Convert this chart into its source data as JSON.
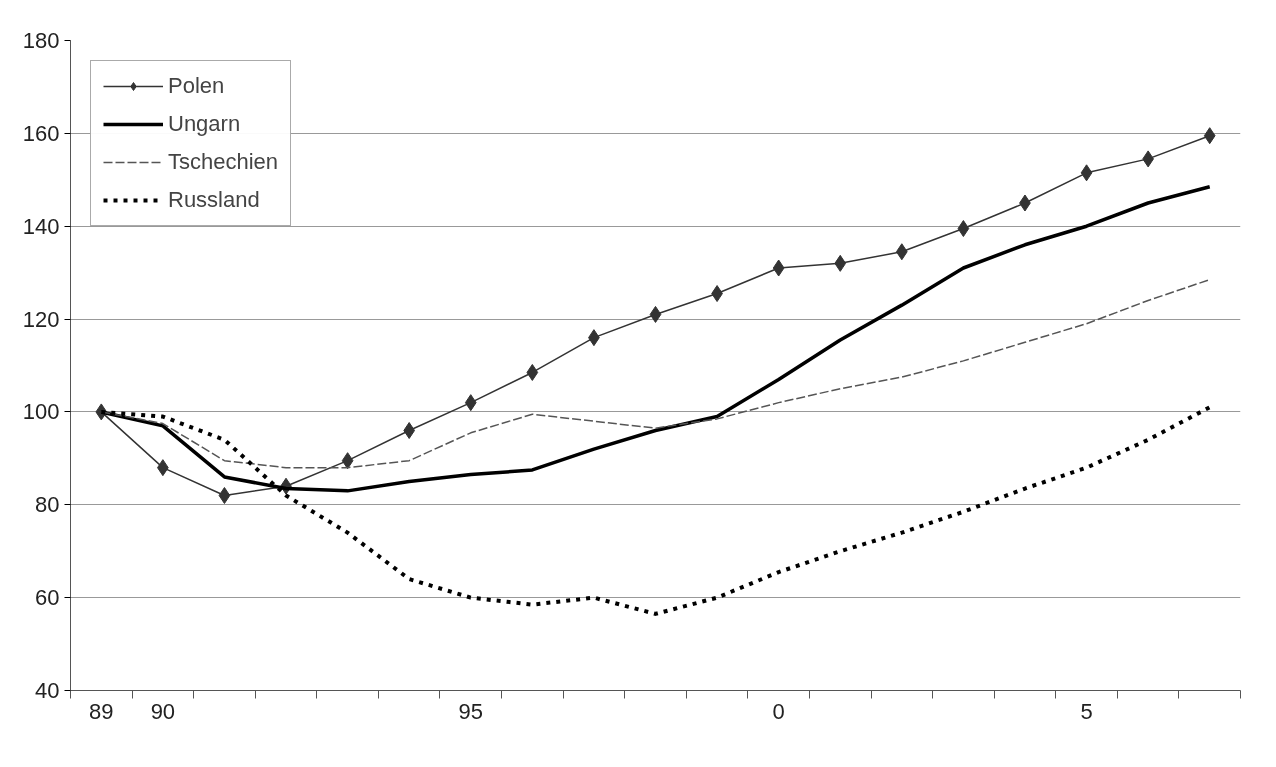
{
  "chart_data": {
    "type": "line",
    "categories": [
      "89",
      "90",
      null,
      null,
      null,
      null,
      "95",
      null,
      null,
      null,
      null,
      "0",
      null,
      null,
      null,
      null,
      "5",
      null,
      null
    ],
    "ylim": [
      40,
      180
    ],
    "yticks": [
      40,
      60,
      80,
      100,
      120,
      140,
      160,
      180
    ],
    "grid": "y",
    "legend": "top left",
    "series": [
      {
        "name": "Polen",
        "color": "#333333",
        "marker": "diamond",
        "line_style": "solid",
        "values": [
          100,
          88,
          82,
          84,
          89.5,
          96,
          102,
          108.5,
          116,
          121,
          125.5,
          131,
          132,
          134.5,
          139.5,
          145,
          151.5,
          154.5,
          159.5
        ]
      },
      {
        "name": "Ungarn",
        "color": "#000000",
        "marker": "none",
        "line_style": "solid",
        "values": [
          100,
          97,
          86,
          83.5,
          83,
          85,
          86.5,
          87.5,
          92,
          96,
          99,
          107,
          115.5,
          123,
          131,
          136,
          140,
          145,
          148.5
        ]
      },
      {
        "name": "Tschechien",
        "color": "#555555",
        "marker": "none",
        "line_style": "dashed",
        "values": [
          100,
          97.5,
          89.5,
          88,
          88,
          89.5,
          95.5,
          99.5,
          98,
          96.5,
          98.5,
          102,
          105,
          107.5,
          111,
          115,
          119,
          124,
          128.5
        ]
      },
      {
        "name": "Russland",
        "color": "#000000",
        "marker": "none",
        "line_style": "dotted",
        "values": [
          100,
          99,
          94,
          82,
          74,
          64,
          60,
          58.5,
          60,
          56.5,
          60,
          65.5,
          70,
          74,
          78.5,
          83.5,
          88,
          94,
          101
        ]
      }
    ]
  }
}
